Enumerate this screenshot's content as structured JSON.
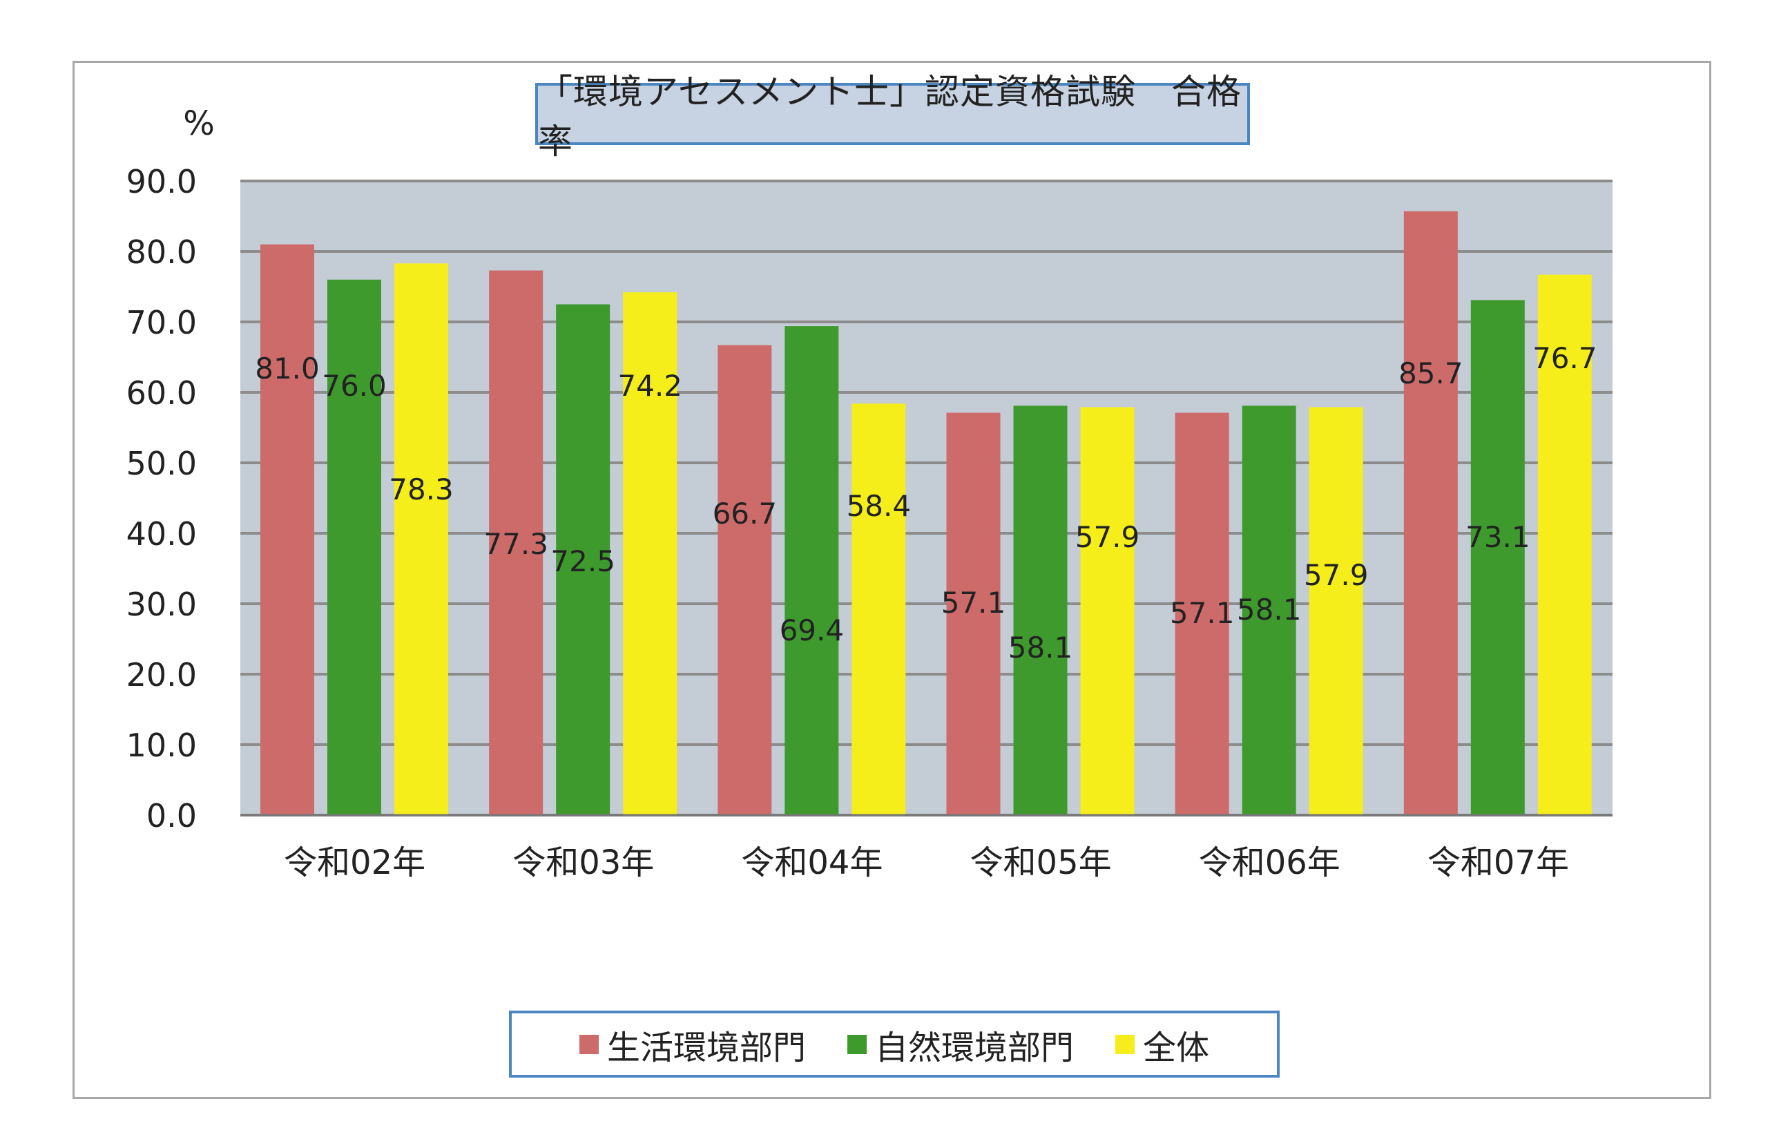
{
  "chart_data": {
    "type": "bar",
    "title": "「環境アセスメント士」認定資格試験　合格率",
    "ylabel": "%",
    "xlabel": "",
    "ylim": [
      0,
      90
    ],
    "yticks": [
      "0.0",
      "10.0",
      "20.0",
      "30.0",
      "40.0",
      "50.0",
      "60.0",
      "70.0",
      "80.0",
      "90.0"
    ],
    "grid": true,
    "legend_position": "bottom",
    "categories": [
      "令和02年",
      "令和03年",
      "令和04年",
      "令和05年",
      "令和06年",
      "令和07年"
    ],
    "series": [
      {
        "name": "生活環境部門",
        "color": "#cd6b6b",
        "values": [
          81.0,
          77.3,
          66.7,
          57.1,
          57.1,
          85.7
        ],
        "labels": [
          "81.0",
          "77.3",
          "66.7",
          "57.1",
          "57.1",
          "85.7"
        ]
      },
      {
        "name": "自然環境部門",
        "color": "#3f9a2e",
        "values": [
          76.0,
          72.5,
          69.4,
          58.1,
          58.1,
          73.1
        ],
        "labels": [
          "76.0",
          "72.5",
          "69.4",
          "58.1",
          "58.1",
          "73.1"
        ]
      },
      {
        "name": "全体",
        "color": "#f5ee1a",
        "values": [
          78.3,
          74.2,
          58.4,
          57.9,
          57.9,
          76.7
        ],
        "labels": [
          "78.3",
          "74.2",
          "58.4",
          "57.9",
          "57.9",
          "76.7"
        ]
      }
    ],
    "plot_background": "#c4ccd6",
    "grid_color": "#8c8c8c"
  }
}
